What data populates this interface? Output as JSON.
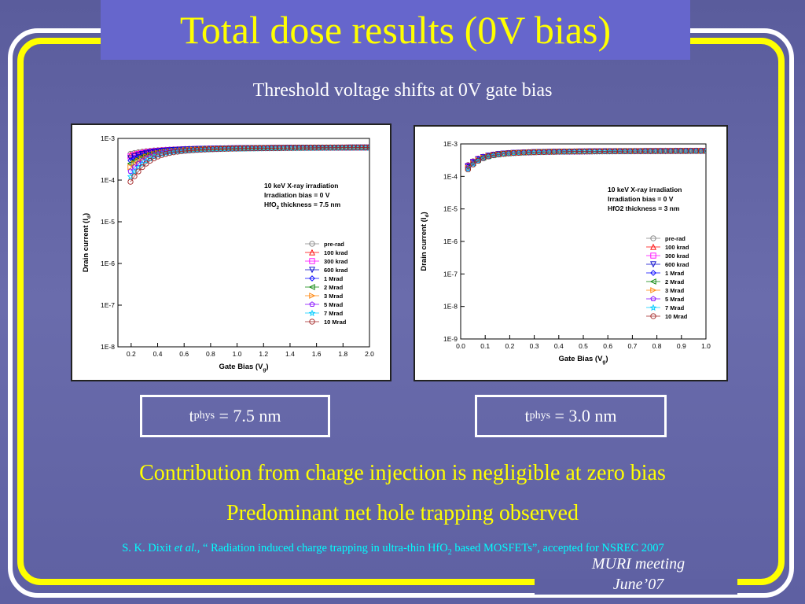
{
  "slide": {
    "title": "Total dose results (0V bias)",
    "subtitle": "Threshold voltage shifts at 0V gate bias",
    "box_left_t": "t",
    "box_left_sub": "phys",
    "box_left_rest": " = 7.5 nm",
    "box_right_t": "t",
    "box_right_sub": "phys",
    "box_right_rest": " = 3.0 nm",
    "line1": "Contribution from charge injection is negligible at zero bias",
    "line2": "Predominant net hole trapping observed",
    "citation_a": "S. K. Dixit ",
    "citation_b": "et al.",
    "citation_c": ", “ Radiation induced charge trapping in ultra-thin HfO",
    "citation_sub": "2",
    "citation_d": " based MOSFETs”, accepted for NSREC 2007",
    "footer_1": "MURI meeting",
    "footer_2": "June’07"
  },
  "colors": {
    "title": "#ffff00",
    "title_box": "#6666cc",
    "background": "#6a6cac",
    "frame_yellow": "#ffff00",
    "citation": "#00ffff"
  },
  "chart_data": [
    {
      "type": "scatter",
      "xlabel": "Gate Bias (V",
      "xlabel_sub": "g",
      "ylabel": "Drain current (I",
      "ylabel_sub": "d",
      "xlim": [
        0.1,
        2.0
      ],
      "ylim_log10": [
        -8,
        -3
      ],
      "xticks": [
        0.2,
        0.4,
        0.6,
        0.8,
        1.0,
        1.2,
        1.4,
        1.6,
        1.8,
        2.0
      ],
      "xtick_labels": [
        "0.2",
        "0.4",
        "0.6",
        "0.8",
        "1.0",
        "1.2",
        "1.4",
        "1.6",
        "1.8",
        "2.0"
      ],
      "yticks": [
        "1E-3",
        "1E-4",
        "1E-5",
        "1E-6",
        "1E-7",
        "1E-8"
      ],
      "annotation": [
        "10 keV X-ray irradiation",
        "Irradiation bias = 0 V",
        "HfO"
      ],
      "annotation_sub": "2",
      "annotation_tail": " thickness = 7.5 nm",
      "series": [
        {
          "name": "pre-rad",
          "vth": 0.05,
          "color": "#808080"
        },
        {
          "name": "100 krad",
          "vth": 0.08,
          "color": "#ff0000"
        },
        {
          "name": "300 krad",
          "vth": 0.11,
          "color": "#ff00ff"
        },
        {
          "name": "600 krad",
          "vth": 0.14,
          "color": "#0000cc"
        },
        {
          "name": "1 Mrad",
          "vth": 0.17,
          "color": "#0000ff"
        },
        {
          "name": "2 Mrad",
          "vth": 0.2,
          "color": "#008000"
        },
        {
          "name": "3 Mrad",
          "vth": 0.23,
          "color": "#ff8000"
        },
        {
          "name": "5 Mrad",
          "vth": 0.26,
          "color": "#8000ff"
        },
        {
          "name": "7 Mrad",
          "vth": 0.29,
          "color": "#00ccff"
        },
        {
          "name": "10 Mrad",
          "vth": 0.32,
          "color": "#a02020"
        }
      ]
    },
    {
      "type": "scatter",
      "xlabel": "Gate Bias (V",
      "xlabel_sub": "g",
      "ylabel": "Drain current (I",
      "ylabel_sub": "d",
      "xlim": [
        0.0,
        1.0
      ],
      "ylim_log10": [
        -9,
        -3
      ],
      "xticks": [
        0.0,
        0.1,
        0.2,
        0.3,
        0.4,
        0.5,
        0.6,
        0.7,
        0.8,
        0.9,
        1.0
      ],
      "xtick_labels": [
        "0.0",
        "0.1",
        "0.2",
        "0.3",
        "0.4",
        "0.5",
        "0.6",
        "0.7",
        "0.8",
        "0.9",
        "1.0"
      ],
      "yticks": [
        "1E-3",
        "1E-4",
        "1E-5",
        "1E-6",
        "1E-7",
        "1E-8",
        "1E-9"
      ],
      "annotation": [
        "10 keV X-ray irradiation",
        "Irradiation bias = 0 V",
        "HfO2 thickness = 3 nm"
      ],
      "series": [
        {
          "name": "pre-rad",
          "vth": 0.04,
          "color": "#808080"
        },
        {
          "name": "100 krad",
          "vth": 0.042,
          "color": "#ff0000"
        },
        {
          "name": "300 krad",
          "vth": 0.044,
          "color": "#ff00ff"
        },
        {
          "name": "600 krad",
          "vth": 0.046,
          "color": "#0000cc"
        },
        {
          "name": "1 Mrad",
          "vth": 0.048,
          "color": "#0000ff"
        },
        {
          "name": "2 Mrad",
          "vth": 0.05,
          "color": "#008000"
        },
        {
          "name": "3 Mrad",
          "vth": 0.052,
          "color": "#ff8000"
        },
        {
          "name": "5 Mrad",
          "vth": 0.054,
          "color": "#8000ff"
        },
        {
          "name": "7 Mrad",
          "vth": 0.056,
          "color": "#00ccff"
        },
        {
          "name": "10 Mrad",
          "vth": 0.058,
          "color": "#a02020"
        }
      ]
    }
  ]
}
